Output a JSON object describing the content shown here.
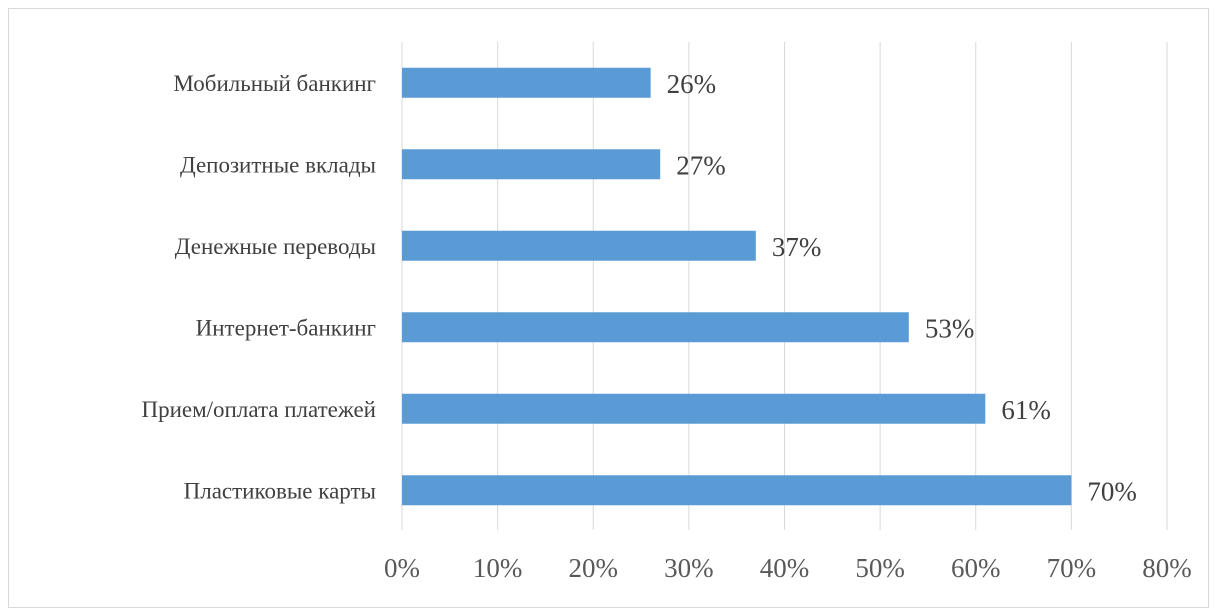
{
  "chart_data": {
    "type": "bar",
    "orientation": "horizontal",
    "categories": [
      "Мобильный банкинг",
      "Депозитные вклады",
      "Денежные переводы",
      "Интернет-банкинг",
      "Прием/оплата платежей",
      "Пластиковые карты"
    ],
    "values": [
      26,
      27,
      37,
      53,
      61,
      70
    ],
    "data_labels": [
      "26%",
      "27%",
      "37%",
      "53%",
      "61%",
      "70%"
    ],
    "x_ticks": [
      "0%",
      "10%",
      "20%",
      "30%",
      "40%",
      "50%",
      "60%",
      "70%",
      "80%"
    ],
    "xlim": [
      0,
      80
    ],
    "grid": true,
    "legend": false,
    "bar_color": "#5b9bd5",
    "grid_color": "#d9d9d9",
    "text_color": "#404040"
  }
}
